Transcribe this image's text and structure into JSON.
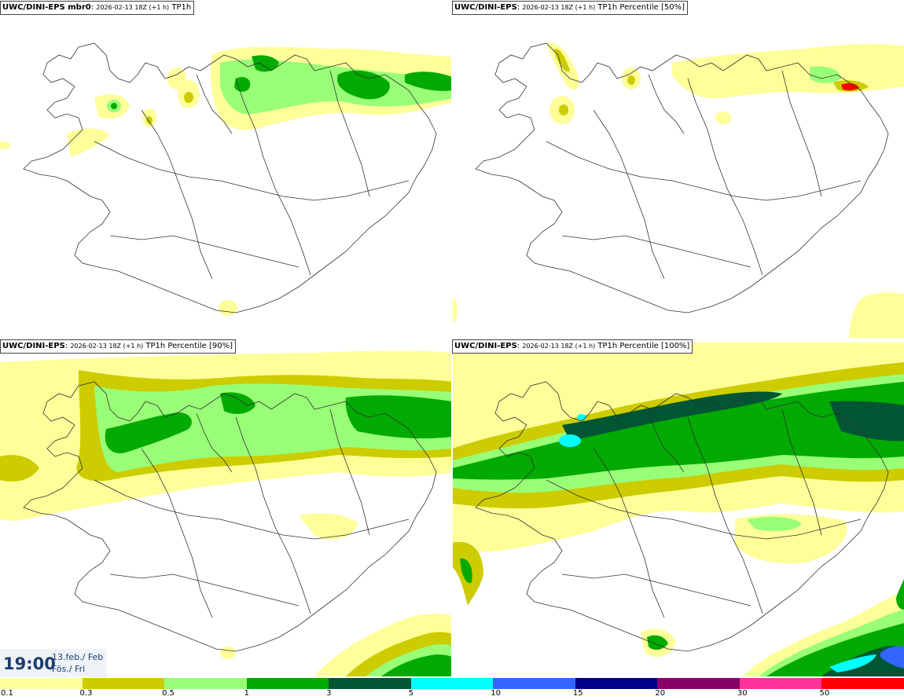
{
  "panels": [
    {
      "model": "UWC/DINI-EPS mbr0",
      "sep": ":",
      "run": "2026-02-13 18Z (+1 h)",
      "param": "TP1h"
    },
    {
      "model": "UWC/DINI-EPS",
      "sep": ":",
      "run": "2026-02-13 18Z (+1 h)",
      "param": "TP1h Percentile [50%]"
    },
    {
      "model": "UWC/DINI-EPS",
      "sep": ":",
      "run": "2026-02-13 18Z (+1 h)",
      "param": "TP1h Percentile [90%]"
    },
    {
      "model": "UWC/DINI-EPS",
      "sep": ":",
      "run": "2026-02-13 18Z (+1 h)",
      "param": "TP1h Percentile [100%]"
    }
  ],
  "valid_time": {
    "time": "19:00",
    "date": "13.feb./ Feb",
    "day": "Fös./ Fri"
  },
  "legend": {
    "colors": [
      "#ffff99",
      "#cccc00",
      "#99ff77",
      "#00aa00",
      "#005533",
      "#00ffff",
      "#3366ff",
      "#000088",
      "#880066",
      "#ff3399",
      "#ff0000"
    ],
    "ticks": [
      "0.1",
      "0.3",
      "0.5",
      "1",
      "3",
      "5",
      "10",
      "15",
      "20",
      "30",
      "50"
    ]
  }
}
